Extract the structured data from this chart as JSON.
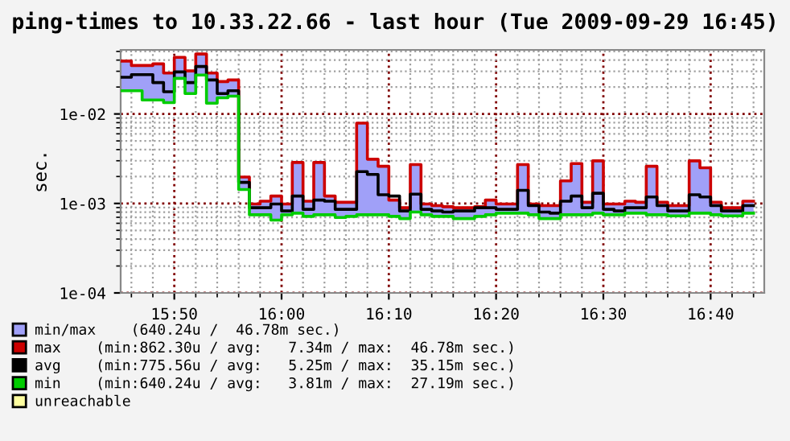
{
  "chart_data": {
    "type": "step",
    "title": "ping-times to 10.33.22.66 - last hour (Tue 2009-09-29 16:45)",
    "ylabel": "sec.",
    "x": [
      "2009-09-29T15:45",
      "2009-09-29T15:46",
      "2009-09-29T15:47",
      "2009-09-29T15:48",
      "2009-09-29T15:49",
      "2009-09-29T15:50",
      "2009-09-29T15:51",
      "2009-09-29T15:52",
      "2009-09-29T15:53",
      "2009-09-29T15:54",
      "2009-09-29T15:55",
      "2009-09-29T15:56",
      "2009-09-29T15:57",
      "2009-09-29T15:58",
      "2009-09-29T15:59",
      "2009-09-29T16:00",
      "2009-09-29T16:01",
      "2009-09-29T16:02",
      "2009-09-29T16:03",
      "2009-09-29T16:04",
      "2009-09-29T16:05",
      "2009-09-29T16:06",
      "2009-09-29T16:07",
      "2009-09-29T16:08",
      "2009-09-29T16:09",
      "2009-09-29T16:10",
      "2009-09-29T16:11",
      "2009-09-29T16:12",
      "2009-09-29T16:13",
      "2009-09-29T16:14",
      "2009-09-29T16:15",
      "2009-09-29T16:16",
      "2009-09-29T16:17",
      "2009-09-29T16:18",
      "2009-09-29T16:19",
      "2009-09-29T16:20",
      "2009-09-29T16:21",
      "2009-09-29T16:22",
      "2009-09-29T16:23",
      "2009-09-29T16:24",
      "2009-09-29T16:25",
      "2009-09-29T16:26",
      "2009-09-29T16:27",
      "2009-09-29T16:28",
      "2009-09-29T16:29",
      "2009-09-29T16:30",
      "2009-09-29T16:31",
      "2009-09-29T16:32",
      "2009-09-29T16:33",
      "2009-09-29T16:34",
      "2009-09-29T16:35",
      "2009-09-29T16:36",
      "2009-09-29T16:37",
      "2009-09-29T16:38",
      "2009-09-29T16:39",
      "2009-09-29T16:40",
      "2009-09-29T16:41",
      "2009-09-29T16:42",
      "2009-09-29T16:43",
      "2009-09-29T16:44"
    ],
    "series": [
      {
        "name": "min/max    (640.24u /  46.78m sec.)",
        "type": "area",
        "color": "#a0a0f8",
        "values": [
          null,
          null,
          null,
          null,
          null,
          null,
          null,
          null,
          null,
          null,
          null,
          null,
          null,
          null,
          null,
          null,
          null,
          null,
          null,
          null,
          null,
          null,
          null,
          null,
          null,
          null,
          null,
          null,
          null,
          null,
          null,
          null,
          null,
          null,
          null,
          null,
          null,
          null,
          null,
          null,
          null,
          null,
          null,
          null,
          null,
          null,
          null,
          null,
          null,
          null,
          null,
          null,
          null,
          null,
          null,
          null,
          null,
          null,
          null,
          null
        ]
      },
      {
        "name": "max    (min:862.30u / avg:   7.34m / max:  46.78m sec.)",
        "color": "#cc0000",
        "values": [
          0.039,
          0.0348,
          0.0348,
          0.0363,
          0.0287,
          0.0429,
          0.0303,
          0.0468,
          0.0287,
          0.023,
          0.024,
          0.00197,
          0.000986,
          0.00106,
          0.00121,
          0.000986,
          0.00287,
          0.00106,
          0.00287,
          0.00121,
          0.00103,
          0.00103,
          0.0079,
          0.00312,
          0.0026,
          0.00109,
          0.000895,
          0.00272,
          0.000986,
          0.000946,
          0.00092,
          0.000895,
          0.000895,
          0.00092,
          0.00109,
          0.000986,
          0.000986,
          0.00272,
          0.000986,
          0.000946,
          0.000946,
          0.00179,
          0.00279,
          0.00103,
          0.00299,
          0.000986,
          0.000986,
          0.00106,
          0.00103,
          0.0026,
          0.00103,
          0.000946,
          0.000946,
          0.00299,
          0.0025,
          0.00103,
          0.000895,
          0.000895,
          0.00106,
          0.00106
        ]
      },
      {
        "name": "avg    (min:775.56u / avg:   5.25m / max:  35.15m sec.)",
        "color": "#000000",
        "values": [
          0.0257,
          0.0275,
          0.0275,
          0.0224,
          0.0177,
          0.0295,
          0.0224,
          0.0339,
          0.024,
          0.0169,
          0.0182,
          0.00172,
          0.000895,
          0.000895,
          0.000986,
          0.000824,
          0.00121,
          0.000859,
          0.00109,
          0.00106,
          0.000859,
          0.000859,
          0.00227,
          0.00211,
          0.00125,
          0.00121,
          0.000824,
          0.00127,
          0.000859,
          0.000824,
          0.000801,
          0.000824,
          0.000824,
          0.000895,
          0.000895,
          0.000859,
          0.000859,
          0.0014,
          0.000946,
          0.000801,
          0.000779,
          0.00106,
          0.00121,
          0.000895,
          0.0013,
          0.000859,
          0.000824,
          0.000895,
          0.000895,
          0.00118,
          0.000946,
          0.000824,
          0.000824,
          0.00125,
          0.00118,
          0.000946,
          0.000824,
          0.000824,
          0.000946,
          0.000946
        ],
        "lower": [
          0.0182,
          0.0182,
          0.01434,
          0.01434,
          0.0134,
          0.025,
          0.0169,
          0.0272,
          0.0132,
          0.01516,
          0.0158,
          0.00143,
          0.000747,
          0.000747,
          0.000651,
          0.000747,
          0.000779,
          0.000717,
          0.000747,
          0.000747,
          0.000697,
          0.000717,
          0.000747,
          0.000747,
          0.000747,
          0.000717,
          0.000678,
          0.000801,
          0.000747,
          0.000717,
          0.000717,
          0.000678,
          0.000678,
          0.000717,
          0.000747,
          0.000779,
          0.000779,
          0.000779,
          0.000747,
          0.000678,
          0.000678,
          0.000747,
          0.000747,
          0.000747,
          0.000779,
          0.000747,
          0.000747,
          0.000779,
          0.000779,
          0.000747,
          0.000747,
          0.000727,
          0.000727,
          0.000779,
          0.000779,
          0.000747,
          0.000727,
          0.000727,
          0.000779,
          0.000779
        ],
        "upper": [
          0.039,
          0.0348,
          0.0348,
          0.0363,
          0.0287,
          0.0429,
          0.0303,
          0.0468,
          0.0287,
          0.023,
          0.024,
          0.00197,
          0.000986,
          0.00106,
          0.00121,
          0.000986,
          0.00287,
          0.00106,
          0.00287,
          0.00121,
          0.00103,
          0.00103,
          0.0079,
          0.00312,
          0.0026,
          0.00109,
          0.000895,
          0.00272,
          0.000986,
          0.000946,
          0.00092,
          0.000895,
          0.000895,
          0.00092,
          0.00109,
          0.000986,
          0.000986,
          0.00272,
          0.000986,
          0.000946,
          0.000946,
          0.00179,
          0.00279,
          0.00103,
          0.00299,
          0.000986,
          0.000986,
          0.00106,
          0.00103,
          0.0026,
          0.00103,
          0.000946,
          0.000946,
          0.00299,
          0.0025,
          0.00103,
          0.000895,
          0.000895,
          0.00106,
          0.00106
        ]
      },
      {
        "name": "min    (min:640.24u / avg:   3.81m / max:  27.19m sec.)",
        "color": "#00cc00",
        "values": [
          0.0182,
          0.0182,
          0.01434,
          0.01434,
          0.0134,
          0.025,
          0.0169,
          0.0272,
          0.0132,
          0.01516,
          0.0158,
          0.00143,
          0.000747,
          0.000747,
          0.000651,
          0.000747,
          0.000779,
          0.000717,
          0.000747,
          0.000747,
          0.000697,
          0.000717,
          0.000747,
          0.000747,
          0.000747,
          0.000717,
          0.000678,
          0.000801,
          0.000747,
          0.000717,
          0.000717,
          0.000678,
          0.000678,
          0.000717,
          0.000747,
          0.000779,
          0.000779,
          0.000779,
          0.000747,
          0.000678,
          0.000678,
          0.000747,
          0.000747,
          0.000747,
          0.000779,
          0.000747,
          0.000747,
          0.000779,
          0.000779,
          0.000747,
          0.000747,
          0.000727,
          0.000727,
          0.000779,
          0.000779,
          0.000747,
          0.000727,
          0.000727,
          0.000779,
          0.000779
        ]
      },
      {
        "name": "unreachable",
        "color": "#ffffa0",
        "values": [
          null,
          null,
          null,
          null,
          null,
          null,
          null,
          null,
          null,
          null,
          null,
          null,
          null,
          null,
          null,
          null,
          null,
          null,
          null,
          null,
          null,
          null,
          null,
          null,
          null,
          null,
          null,
          null,
          null,
          null,
          null,
          null,
          null,
          null,
          null,
          null,
          null,
          null,
          null,
          null,
          null,
          null,
          null,
          null,
          null,
          null,
          null,
          null,
          null,
          null,
          null,
          null,
          null,
          null,
          null,
          null,
          null,
          null,
          null,
          null
        ]
      }
    ],
    "log": "y",
    "ylim": [
      0.0001,
      0.052
    ],
    "yticks": [
      {
        "value": 0.0001,
        "label": "1e-04"
      },
      {
        "value": 0.001,
        "label": "1e-03"
      },
      {
        "value": 0.01,
        "label": "1e-02"
      }
    ],
    "xlim": [
      "2009-09-29T15:45",
      "2009-09-29T16:45"
    ],
    "xticks": [
      {
        "value": "2009-09-29T15:50",
        "label": "15:50"
      },
      {
        "value": "2009-09-29T16:00",
        "label": "16:00"
      },
      {
        "value": "2009-09-29T16:10",
        "label": "16:10"
      },
      {
        "value": "2009-09-29T16:20",
        "label": "16:20"
      },
      {
        "value": "2009-09-29T16:30",
        "label": "16:30"
      },
      {
        "value": "2009-09-29T16:40",
        "label": "16:40"
      }
    ],
    "grid": true,
    "legend": "bottom"
  }
}
